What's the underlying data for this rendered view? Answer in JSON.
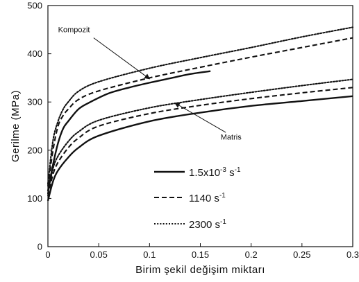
{
  "chart_data": {
    "type": "line",
    "title": "",
    "xlabel": "Birim şekil değişim miktarı",
    "ylabel": "Gerilme (MPa)",
    "xlim": [
      0,
      0.3
    ],
    "ylim": [
      0,
      500
    ],
    "x_ticks": [
      "0",
      "0.05",
      "0.1",
      "0.15",
      "0.2",
      "0.25",
      "0.3"
    ],
    "y_ticks": [
      "0",
      "100",
      "200",
      "300",
      "400",
      "500"
    ],
    "grid": false,
    "legend_position": "lower-center",
    "legend": [
      {
        "text_main": "1.5x10",
        "text_sup1": "-3",
        "text_mid": " s",
        "text_sup2": "-1",
        "dash": "solid",
        "color": "#111111"
      },
      {
        "text_main": "1140 s",
        "text_sup1": "-1",
        "text_mid": "",
        "text_sup2": "",
        "dash": "dashed",
        "color": "#111111"
      },
      {
        "text_main": "2300 s",
        "text_sup1": "-1",
        "text_mid": "",
        "text_sup2": "",
        "dash": "dotted",
        "color": "#111111"
      }
    ],
    "series": [
      {
        "name": "Kompozit 1.5x10-3 s-1",
        "dash": "solid",
        "x": [
          0.0,
          0.005,
          0.01,
          0.015,
          0.02,
          0.03,
          0.04,
          0.06,
          0.08,
          0.1,
          0.12,
          0.14,
          0.16
        ],
        "y": [
          115,
          170,
          215,
          245,
          260,
          285,
          298,
          318,
          330,
          340,
          349,
          358,
          364
        ]
      },
      {
        "name": "Kompozit 1140 s-1",
        "dash": "dashed",
        "x": [
          0.0,
          0.005,
          0.01,
          0.015,
          0.02,
          0.03,
          0.05,
          0.1,
          0.15,
          0.2,
          0.25,
          0.3
        ],
        "y": [
          125,
          200,
          250,
          272,
          285,
          305,
          323,
          350,
          372,
          393,
          413,
          433
        ]
      },
      {
        "name": "Kompozit 2300 s-1",
        "dash": "dotted",
        "x": [
          0.0,
          0.005,
          0.01,
          0.015,
          0.02,
          0.03,
          0.05,
          0.1,
          0.15,
          0.2,
          0.25,
          0.3
        ],
        "y": [
          130,
          220,
          260,
          285,
          300,
          322,
          342,
          370,
          392,
          413,
          435,
          455
        ]
      },
      {
        "name": "Matris 1.5x10-3 s-1",
        "dash": "solid",
        "x": [
          0.0,
          0.005,
          0.01,
          0.02,
          0.03,
          0.05,
          0.1,
          0.15,
          0.2,
          0.25,
          0.3
        ],
        "y": [
          95,
          135,
          158,
          185,
          205,
          230,
          260,
          278,
          292,
          302,
          312
        ]
      },
      {
        "name": "Matris 1140 s-1",
        "dash": "dashed",
        "x": [
          0.0,
          0.005,
          0.01,
          0.02,
          0.03,
          0.05,
          0.1,
          0.15,
          0.2,
          0.25,
          0.3
        ],
        "y": [
          105,
          150,
          175,
          205,
          225,
          250,
          276,
          293,
          307,
          319,
          330
        ]
      },
      {
        "name": "Matris 2300 s-1",
        "dash": "dotted",
        "x": [
          0.0,
          0.005,
          0.01,
          0.02,
          0.03,
          0.05,
          0.1,
          0.15,
          0.2,
          0.25,
          0.3
        ],
        "y": [
          110,
          162,
          188,
          218,
          238,
          262,
          288,
          305,
          320,
          334,
          347
        ]
      }
    ],
    "annotations": [
      {
        "text": "Kompozit",
        "label_at": [
          0.01,
          445
        ],
        "arrow_from": [
          0.045,
          433
        ],
        "arrow_to": [
          0.1,
          348
        ]
      },
      {
        "text": "Matris",
        "label_at": [
          0.17,
          222
        ],
        "arrow_from": [
          0.175,
          237
        ],
        "arrow_to": [
          0.125,
          298
        ]
      }
    ]
  }
}
